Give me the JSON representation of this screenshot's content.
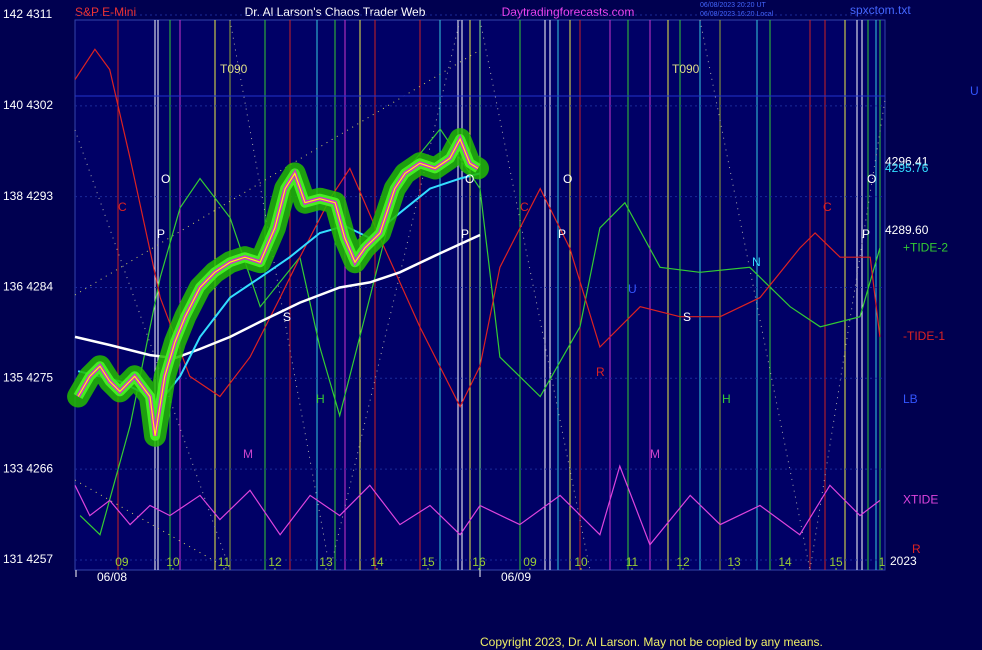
{
  "chart_data": {
    "type": "line",
    "title": "Dr. Al Larson's Chaos Trader Web",
    "subtitle": "S&P E-Mini",
    "site": "Daytradingforecasts.com",
    "timestamps": [
      "06/08/2023 20:20 UT",
      "06/08/2023 16:20 Local"
    ],
    "file": "spxctom.txt",
    "copyright": "Copyright 2023, Dr. Al Larson. May not be copied by any means.",
    "xlim": [
      8.08,
      23.96
    ],
    "xticks": [
      {
        "value": 9,
        "label": "09"
      },
      10,
      11,
      12,
      13,
      14,
      15,
      16,
      {
        "value": 17,
        "label": "09"
      },
      {
        "value": 18,
        "label": "10"
      },
      {
        "value": 19,
        "label": "11"
      },
      {
        "value": 20,
        "label": "12"
      },
      {
        "value": 21,
        "label": "13"
      },
      {
        "value": 22,
        "label": "14"
      },
      {
        "value": 23,
        "label": "15"
      },
      {
        "value": 23.9,
        "label": "1"
      }
    ],
    "ylim": [
      4256.5,
      4311
    ],
    "yticks": [
      {
        "value": 4311,
        "label": "142 4311"
      },
      {
        "value": 4302,
        "label": "140 4302"
      },
      {
        "value": 4293,
        "label": "138 4293"
      },
      {
        "value": 4284,
        "label": "136 4284"
      },
      {
        "value": 4275,
        "label": "135 4275"
      },
      {
        "value": 4266,
        "label": "133 4266"
      },
      {
        "value": 4257,
        "label": "131 4257"
      }
    ],
    "grid": true,
    "series": [
      {
        "color": "#ffff00",
        "x": [
          8.14,
          8.37,
          8.57,
          8.76,
          8.96,
          9.25,
          9.55,
          9.65,
          9.84,
          10.04,
          10.24,
          10.53,
          10.82,
          11.12,
          11.41,
          11.71,
          12.0,
          12.2,
          12.39,
          12.59,
          12.88,
          13.18,
          13.37,
          13.57,
          13.76,
          14.06,
          14.35,
          14.55,
          14.84,
          15.14,
          15.43,
          15.63,
          15.82,
          15.98
        ],
        "values": [
          4273.2,
          4275.2,
          4276.2,
          4274.7,
          4273.7,
          4275.2,
          4273.2,
          4269.3,
          4275.2,
          4278.6,
          4281.1,
          4284.0,
          4285.5,
          4286.5,
          4287.0,
          4286.5,
          4289.9,
          4293.8,
          4295.3,
          4292.4,
          4292.8,
          4292.4,
          4288.9,
          4286.5,
          4287.9,
          4289.4,
          4293.8,
          4295.3,
          4296.3,
          4295.8,
          4296.8,
          4298.7,
          4296.3,
          4295.8
        ]
      },
      {
        "color": "#33ddff",
        "x": [
          8.14,
          8.96,
          9.75,
          10.14,
          10.53,
          11.12,
          11.71,
          12.29,
          12.88,
          13.37,
          13.86,
          14.45,
          15.04,
          15.63,
          16.02
        ],
        "values": [
          4275.7,
          4274.7,
          4272.7,
          4275.2,
          4279.1,
          4283.0,
          4285.0,
          4287.0,
          4289.4,
          4290.1,
          4288.9,
          4291.4,
          4293.8,
          4294.8,
          4295.3
        ]
      },
      {
        "color": "#ffffff",
        "x": [
          8.08,
          8.76,
          9.55,
          10.04,
          10.53,
          11.12,
          11.71,
          12.49,
          13.27,
          13.86,
          14.45,
          15.24,
          16.02
        ],
        "values": [
          4279.1,
          4278.3,
          4277.3,
          4277.0,
          4277.9,
          4279.1,
          4280.6,
          4282.5,
          4284.0,
          4284.5,
          4285.5,
          4287.4,
          4289.2
        ]
      },
      {
        "name": "+TIDE-2",
        "color": "#33cc33",
        "x": [
          8.18,
          8.57,
          9.16,
          9.75,
          10.14,
          10.53,
          11.12,
          11.71,
          12.49,
          12.88,
          13.27,
          13.86,
          14.45,
          15.24,
          16.02,
          16.41,
          17.2,
          17.98,
          18.37,
          18.86,
          19.55,
          20.33,
          21.31,
          22.1,
          22.69,
          23.47,
          23.86
        ],
        "values": [
          4261.4,
          4259.5,
          4270.3,
          4285.0,
          4291.9,
          4294.8,
          4290.9,
          4282.1,
          4287.0,
          4278.1,
          4271.3,
          4283.0,
          4294.8,
          4299.7,
          4293.8,
          4277.1,
          4273.2,
          4280.1,
          4289.9,
          4292.4,
          4286.0,
          4285.5,
          4286.0,
          4282.1,
          4280.1,
          4281.1,
          4287.9
        ]
      },
      {
        "name": "-TIDE-1",
        "color": "#dd2222",
        "x": [
          8.08,
          8.47,
          8.76,
          9.16,
          9.75,
          10.33,
          10.92,
          11.51,
          12.1,
          12.49,
          13.08,
          13.47,
          14.06,
          14.84,
          15.63,
          16.02,
          16.41,
          17.2,
          17.78,
          18.37,
          19.16,
          19.94,
          20.73,
          21.51,
          22.29,
          22.59,
          23.08,
          23.67,
          23.86
        ],
        "values": [
          4304.6,
          4307.6,
          4305.6,
          4296.8,
          4283.0,
          4275.2,
          4273.2,
          4277.1,
          4283.0,
          4287.0,
          4292.8,
          4295.8,
          4288.9,
          4280.1,
          4272.2,
          4276.2,
          4286.0,
          4293.8,
          4287.9,
          4278.1,
          4282.1,
          4281.1,
          4281.1,
          4283.0,
          4287.9,
          4289.4,
          4287.0,
          4287.0,
          4279.1
        ]
      },
      {
        "name": "XTIDE",
        "color": "#dd44dd",
        "x": [
          8.08,
          8.37,
          8.76,
          9.16,
          9.55,
          9.94,
          10.53,
          10.92,
          11.51,
          12.1,
          12.69,
          13.27,
          13.86,
          14.45,
          15.04,
          15.63,
          16.02,
          16.8,
          17.59,
          18.37,
          18.76,
          19.35,
          20.14,
          20.73,
          21.51,
          22.29,
          22.88,
          23.47,
          23.86
        ],
        "values": [
          4264.4,
          4261.4,
          4262.9,
          4260.5,
          4262.4,
          4261.4,
          4263.4,
          4261.0,
          4263.9,
          4259.5,
          4263.4,
          4261.4,
          4264.4,
          4260.5,
          4262.4,
          4259.5,
          4262.4,
          4260.5,
          4263.4,
          4259.5,
          4266.3,
          4258.5,
          4263.4,
          4260.5,
          4262.4,
          4259.5,
          4264.4,
          4261.4,
          4262.9
        ]
      }
    ],
    "last_values": [
      4296.41,
      4295.76,
      {
        "value": 4289.6,
        "label": "4289.60"
      }
    ],
    "annotations": [
      "T090",
      "T090",
      "O",
      "O",
      "O",
      "O",
      "P",
      "P",
      "P",
      "P",
      "C",
      "C",
      "C",
      "S",
      "S",
      "H",
      "H",
      "M",
      "M",
      "N",
      "U",
      "R",
      "06/08",
      "06/09",
      "LB",
      "U",
      "R",
      "2023"
    ]
  }
}
